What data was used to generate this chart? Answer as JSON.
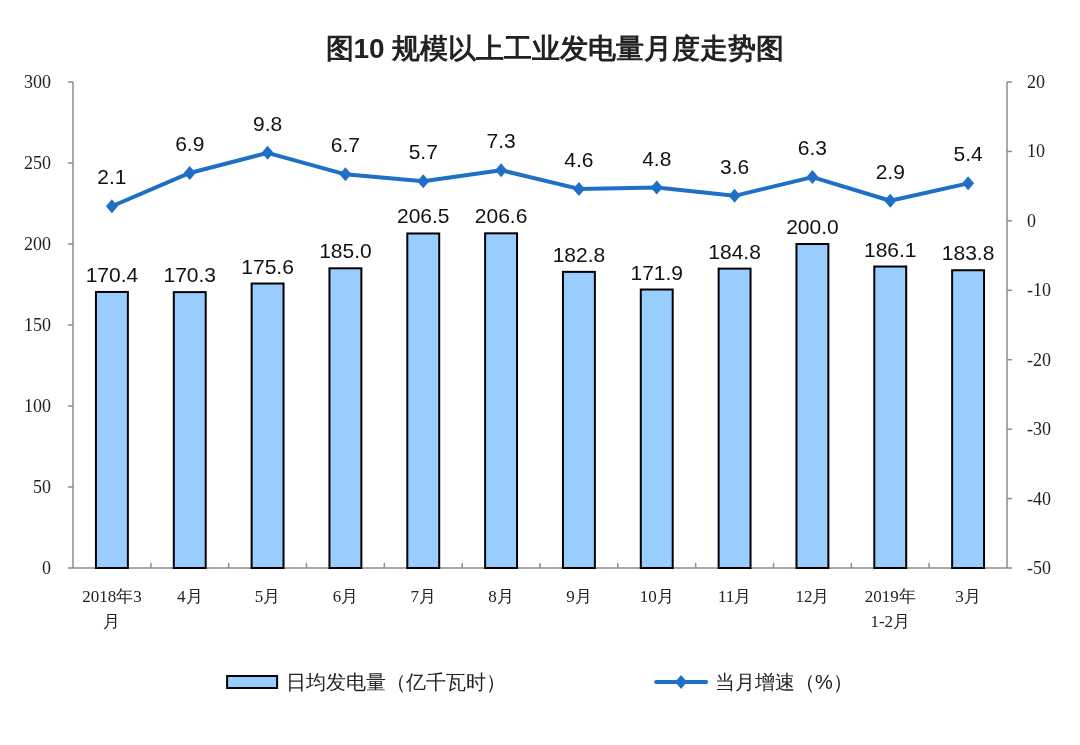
{
  "chart_data": {
    "type": "bar",
    "title": "图10 规模以上工业发电量月度走势图",
    "categories": [
      "2018年3\n月",
      "4月",
      "5月",
      "6月",
      "7月",
      "8月",
      "9月",
      "10月",
      "11月",
      "12月",
      "2019年\n1-2月",
      "3月"
    ],
    "series": [
      {
        "name": "日均发电量（亿千瓦时）",
        "color": "#99ccff",
        "values": [
          170.4,
          170.3,
          175.6,
          185.0,
          206.5,
          206.6,
          182.8,
          171.9,
          184.8,
          200.0,
          186.1,
          183.8
        ],
        "value_labels": [
          "170.4",
          "170.3",
          "175.6",
          "185.0",
          "206.5",
          "206.6",
          "182.8",
          "171.9",
          "184.8",
          "200.0",
          "186.1",
          "183.8"
        ]
      },
      {
        "name": "当月增速（%）",
        "type": "line",
        "axis": "y2",
        "color": "#1f6fc6",
        "values": [
          2.1,
          6.9,
          9.8,
          6.7,
          5.7,
          7.3,
          4.6,
          4.8,
          3.6,
          6.3,
          2.9,
          5.4
        ],
        "value_labels": [
          "2.1",
          "6.9",
          "9.8",
          "6.7",
          "5.7",
          "7.3",
          "4.6",
          "4.8",
          "3.6",
          "6.3",
          "2.9",
          "5.4"
        ]
      }
    ],
    "ylim": [
      0,
      300
    ],
    "yticks": [
      0,
      50,
      100,
      150,
      200,
      250,
      300
    ],
    "y2lim": [
      -50,
      20
    ],
    "y2ticks": [
      -50,
      -40,
      -30,
      -20,
      -10,
      0,
      10,
      20
    ],
    "marker": "diamond",
    "legend": "bottom"
  }
}
